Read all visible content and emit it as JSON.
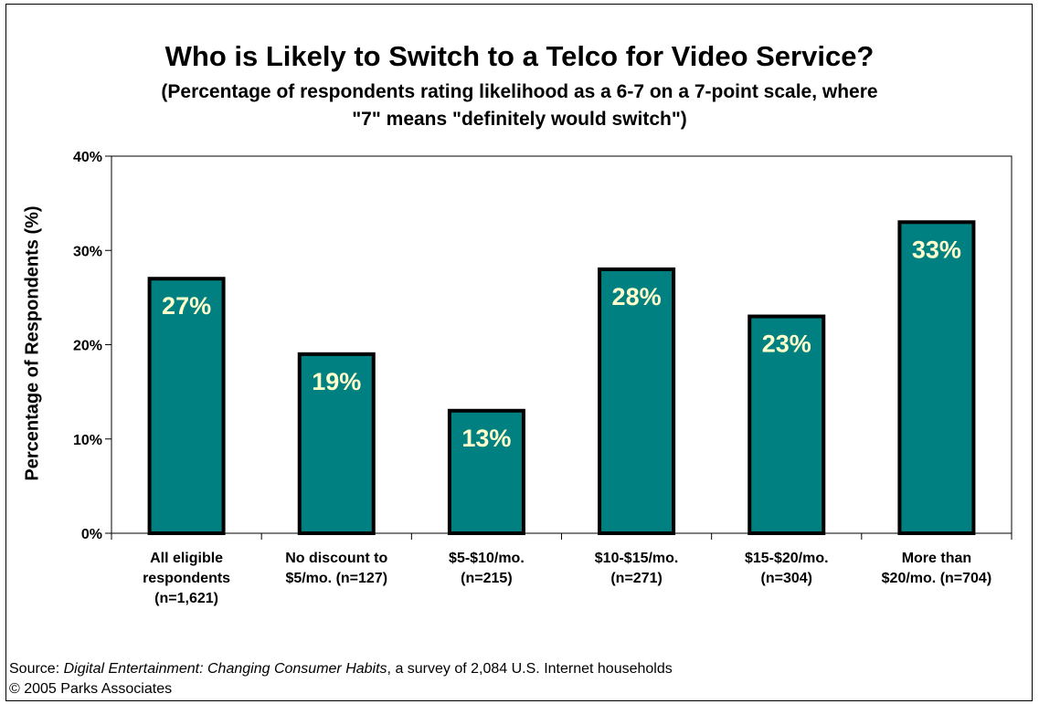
{
  "chart_data": {
    "type": "bar",
    "title": "Who is Likely to Switch to a Telco for Video Service?",
    "subtitle": "(Percentage of respondents rating likelihood as a 6-7 on a 7-point scale, where \"7\" means \"definitely would switch\")",
    "ylabel": "Percentage of Respondents (%)",
    "xlabel": "",
    "ylim": [
      0,
      40
    ],
    "yticks": [
      0,
      10,
      20,
      30,
      40
    ],
    "ytick_labels": [
      "0%",
      "10%",
      "20%",
      "30%",
      "40%"
    ],
    "categories": [
      [
        "All eligible",
        "respondents",
        "(n=1,621)"
      ],
      [
        "No discount to",
        "$5/mo. (n=127)"
      ],
      [
        "$5-$10/mo.",
        "(n=215)"
      ],
      [
        "$10-$15/mo.",
        "(n=271)"
      ],
      [
        "$15-$20/mo.",
        "(n=304)"
      ],
      [
        "More than",
        "$20/mo. (n=704)"
      ]
    ],
    "values": [
      27,
      19,
      13,
      28,
      23,
      33
    ],
    "data_labels": [
      "27%",
      "19%",
      "13%",
      "28%",
      "23%",
      "33%"
    ],
    "grid": false,
    "legend": "none",
    "colors": {
      "bar": "#008080",
      "bar_edge": "#000000",
      "data_label": "#ffffcc"
    }
  },
  "footer": {
    "source_prefix": "Source: ",
    "source_title": "Digital Entertainment: Changing Consumer Habits",
    "source_suffix": ", a survey of 2,084 U.S. Internet households",
    "copyright": "© 2005 Parks Associates"
  }
}
